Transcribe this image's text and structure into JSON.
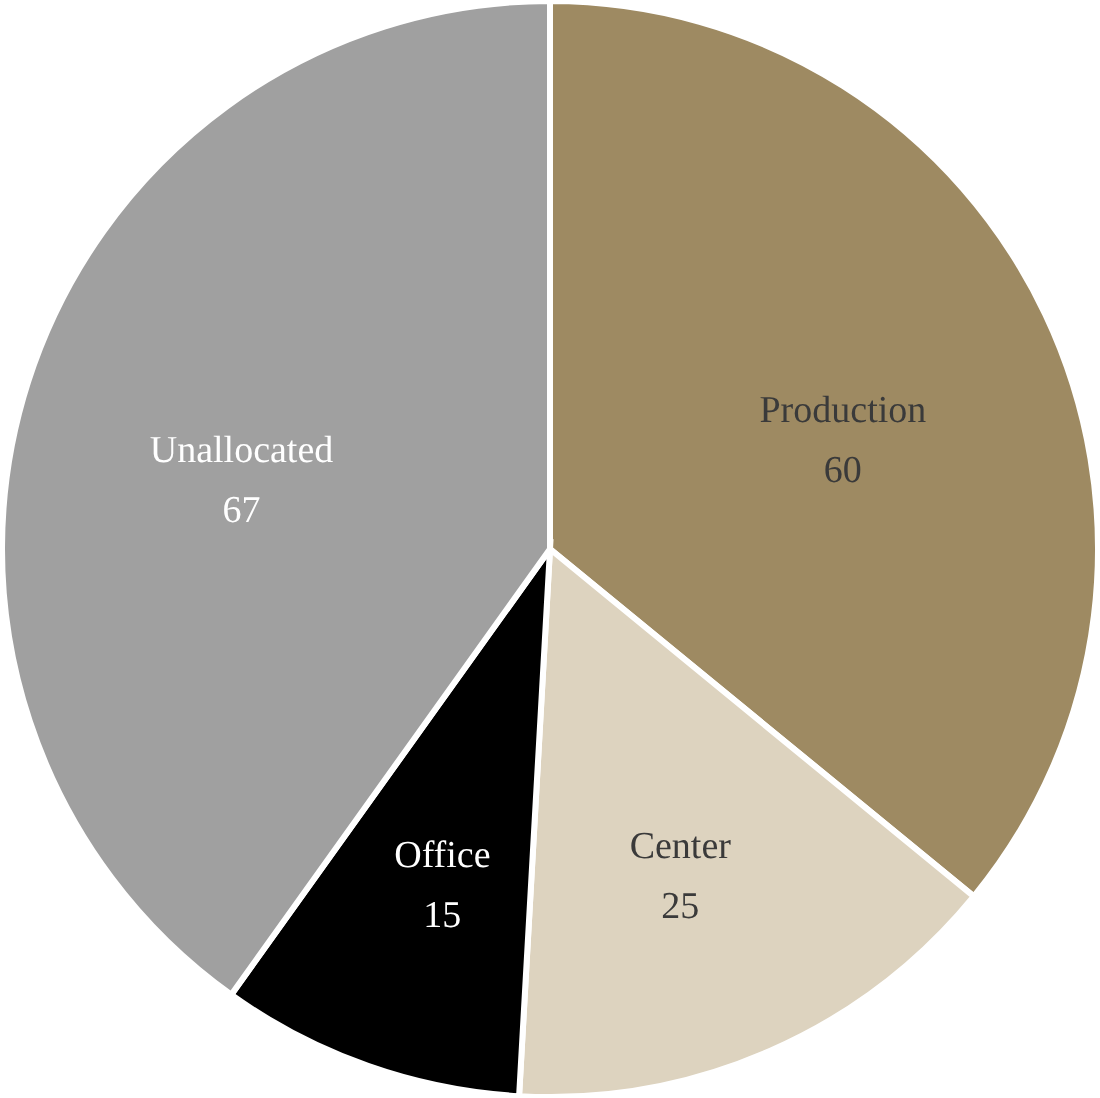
{
  "chart_data": {
    "type": "pie",
    "categories": [
      "Production",
      "Center",
      "Office",
      "Unallocated"
    ],
    "values": [
      60,
      25,
      15,
      67
    ],
    "colors": [
      "#9e8a62",
      "#ddd3bf",
      "#000000",
      "#a0a0a0"
    ],
    "data_labels": true
  }
}
